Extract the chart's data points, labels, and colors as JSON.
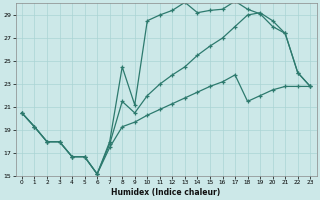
{
  "xlabel": "Humidex (Indice chaleur)",
  "bg_color": "#cce8e8",
  "grid_color": "#aad4d4",
  "line_color": "#2d7a6e",
  "xlim": [
    -0.5,
    23.5
  ],
  "ylim": [
    15,
    30
  ],
  "xticks": [
    0,
    1,
    2,
    3,
    4,
    5,
    6,
    7,
    8,
    9,
    10,
    11,
    12,
    13,
    14,
    15,
    16,
    17,
    18,
    19,
    20,
    21,
    22,
    23
  ],
  "yticks": [
    15,
    17,
    19,
    21,
    23,
    25,
    27,
    29
  ],
  "line1_y": [
    20.5,
    19.3,
    18.0,
    18.0,
    16.7,
    16.7,
    15.2,
    18.0,
    24.5,
    21.2,
    28.5,
    29.0,
    29.4,
    30.1,
    29.2,
    29.4,
    29.5,
    30.2,
    29.5,
    29.1,
    28.0,
    27.4,
    24.0,
    22.8
  ],
  "line2_y": [
    20.5,
    19.3,
    18.0,
    18.0,
    16.7,
    16.7,
    15.2,
    17.8,
    21.5,
    20.5,
    22.0,
    23.0,
    23.8,
    24.5,
    25.5,
    26.3,
    27.0,
    28.0,
    29.0,
    29.2,
    28.5,
    27.4,
    24.0,
    22.8
  ],
  "line3_y": [
    20.5,
    19.3,
    18.0,
    18.0,
    16.7,
    16.7,
    15.2,
    17.5,
    19.3,
    19.7,
    20.3,
    20.8,
    21.3,
    21.8,
    22.3,
    22.8,
    23.2,
    23.8,
    21.5,
    22.0,
    22.5,
    22.8,
    22.8,
    22.8
  ]
}
